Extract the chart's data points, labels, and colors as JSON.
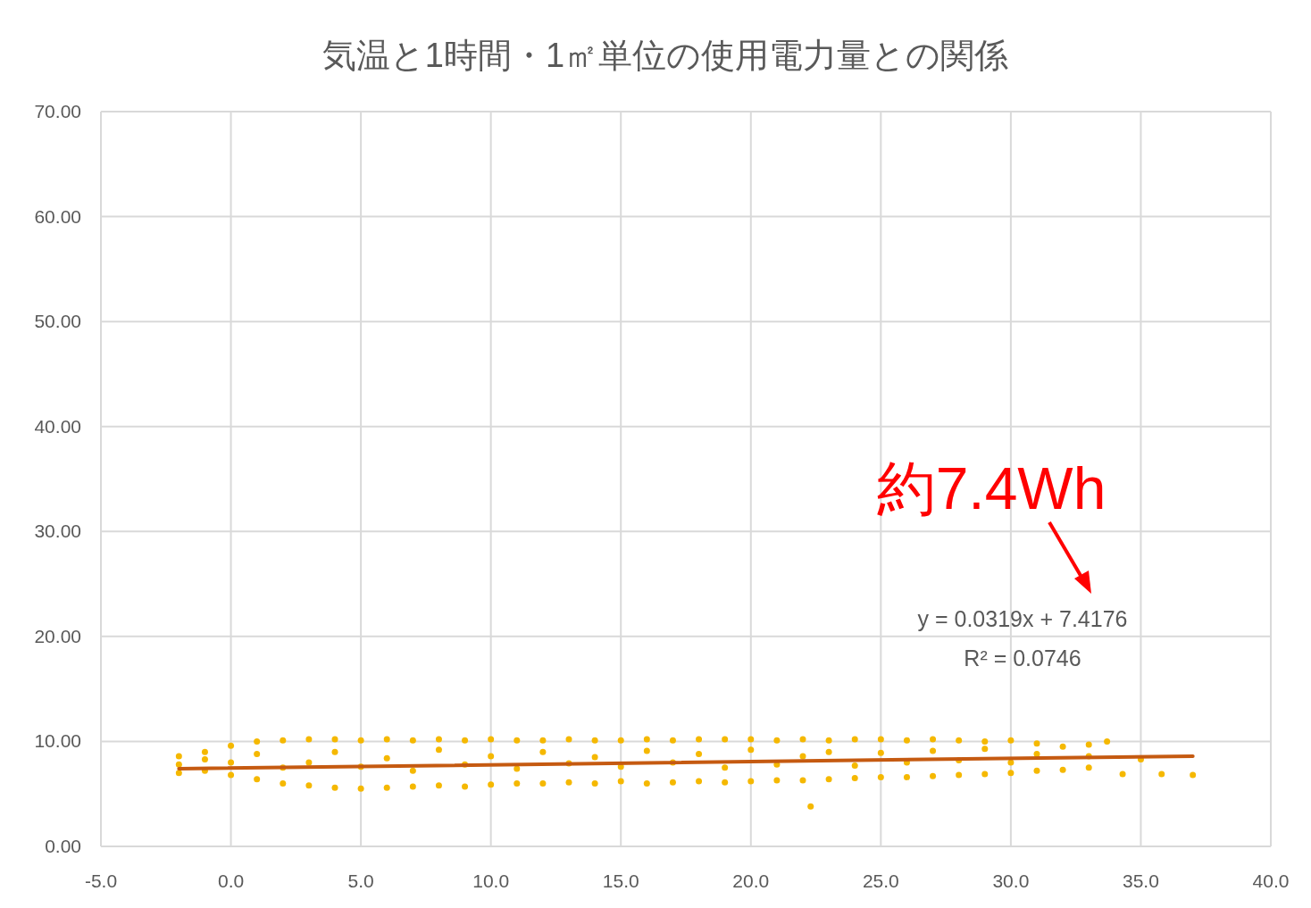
{
  "chart_data": {
    "type": "scatter",
    "title": "気温と1時間・1㎡単位の使用電力量との関係",
    "annotations": [
      "約7.4Wh",
      "y = 0.0319x + 7.4176",
      "R² = 0.0746"
    ],
    "xlim": [
      -5,
      40
    ],
    "xticks": [
      {
        "value": -5,
        "label": "-5.0"
      },
      {
        "value": 0,
        "label": "0.0"
      },
      {
        "value": 5,
        "label": "5.0"
      },
      {
        "value": 10,
        "label": "10.0"
      },
      {
        "value": 15,
        "label": "15.0"
      },
      {
        "value": 20,
        "label": "20.0"
      },
      {
        "value": 25,
        "label": "25.0"
      },
      {
        "value": 30,
        "label": "30.0"
      },
      {
        "value": 35,
        "label": "35.0"
      },
      {
        "value": 40,
        "label": "40.0"
      }
    ],
    "ylim": [
      0,
      70
    ],
    "yticks": [
      {
        "value": 0,
        "label": "0.00"
      },
      {
        "value": 10,
        "label": "10.00"
      },
      {
        "value": 20,
        "label": "20.00"
      },
      {
        "value": 30,
        "label": "30.00"
      },
      {
        "value": 40,
        "label": "40.00"
      },
      {
        "value": 50,
        "label": "50.00"
      },
      {
        "value": 60,
        "label": "60.00"
      },
      {
        "value": 70,
        "label": "70.00"
      }
    ],
    "grid": true,
    "series": [
      {
        "marker": "circle",
        "color": "#f5b800",
        "x": [
          -2,
          -2,
          -2,
          -1,
          -1,
          -1,
          0,
          0,
          0,
          1,
          1,
          1,
          2,
          2,
          2,
          3,
          3,
          3,
          4,
          4,
          4,
          5,
          5,
          5,
          6,
          6,
          6,
          7,
          7,
          7,
          8,
          8,
          8,
          9,
          9,
          9,
          10,
          10,
          10,
          11,
          11,
          11,
          12,
          12,
          12,
          13,
          13,
          13,
          14,
          14,
          14,
          15,
          15,
          15,
          16,
          16,
          16,
          17,
          17,
          17,
          18,
          18,
          18,
          19,
          19,
          19,
          20,
          20,
          20,
          21,
          21,
          21,
          22,
          22,
          22,
          22.3,
          23,
          23,
          23,
          24,
          24,
          24,
          25,
          25,
          25,
          26,
          26,
          26,
          27,
          27,
          27,
          28,
          28,
          28,
          29,
          29,
          29,
          30,
          30,
          30,
          31,
          31,
          31,
          32,
          32,
          33,
          33,
          33,
          33.7,
          34.3,
          35,
          35.8,
          37
        ],
        "values": [
          7.0,
          7.8,
          8.6,
          7.2,
          8.3,
          9.0,
          6.8,
          8.0,
          9.6,
          6.4,
          8.8,
          10.0,
          6.0,
          7.5,
          10.1,
          5.8,
          8.0,
          10.2,
          5.6,
          9.0,
          10.2,
          5.5,
          7.6,
          10.1,
          5.6,
          8.4,
          10.2,
          5.7,
          7.2,
          10.1,
          5.8,
          9.2,
          10.2,
          5.7,
          7.8,
          10.1,
          5.9,
          8.6,
          10.2,
          6.0,
          7.4,
          10.1,
          6.0,
          9.0,
          10.1,
          6.1,
          7.9,
          10.2,
          6.0,
          8.5,
          10.1,
          6.2,
          7.6,
          10.1,
          6.0,
          9.1,
          10.2,
          6.1,
          8.0,
          10.1,
          6.2,
          8.8,
          10.2,
          6.1,
          7.5,
          10.2,
          6.2,
          9.2,
          10.2,
          6.3,
          7.8,
          10.1,
          6.3,
          8.6,
          10.2,
          3.8,
          6.4,
          9.0,
          10.1,
          6.5,
          7.7,
          10.2,
          6.6,
          8.9,
          10.2,
          6.6,
          8.0,
          10.1,
          6.7,
          9.1,
          10.2,
          6.8,
          8.2,
          10.1,
          6.9,
          9.3,
          10.0,
          7.0,
          8.0,
          10.1,
          7.2,
          8.8,
          9.8,
          7.3,
          9.5,
          7.5,
          8.6,
          9.7,
          10.0,
          6.9,
          8.3,
          6.9,
          6.8
        ]
      },
      {
        "type": "line",
        "color": "#c55a11",
        "x": [
          -2,
          37
        ],
        "values": [
          7.4,
          8.6
        ]
      }
    ]
  }
}
